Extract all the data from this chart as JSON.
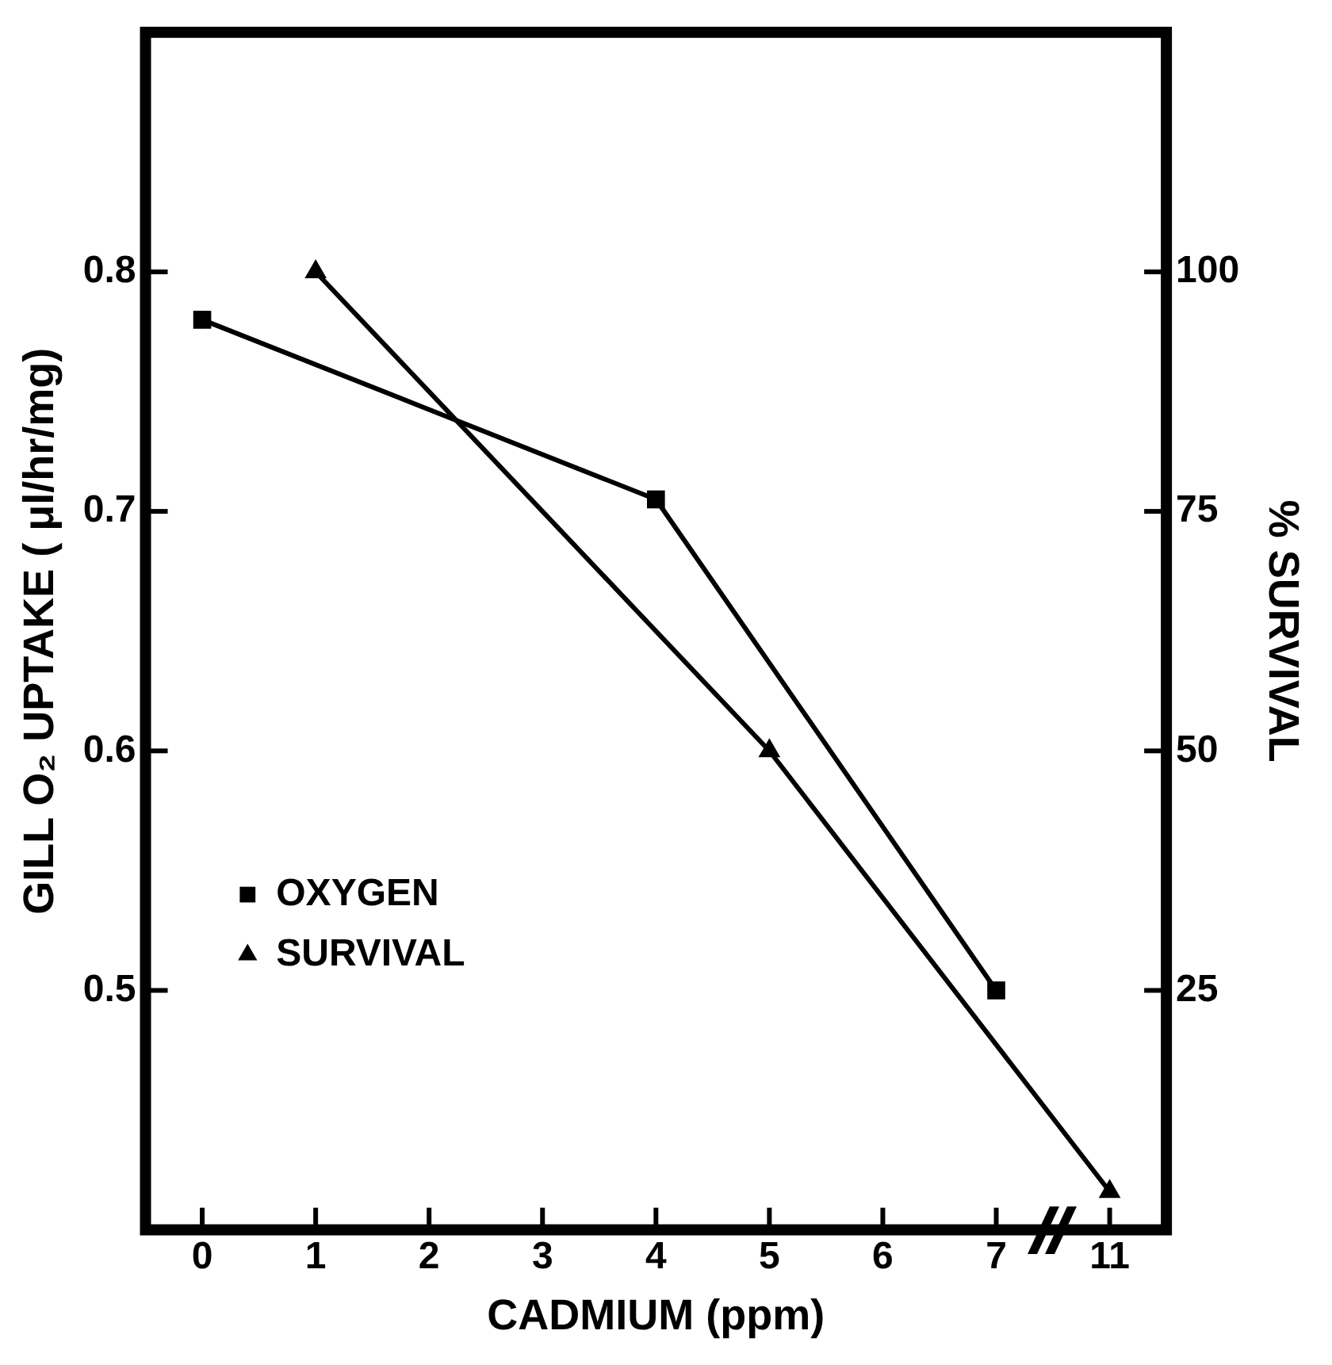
{
  "chart_data": {
    "type": "line",
    "xlabel": "CADMIUM (ppm)",
    "ylabel": "GILL O₂ UPTAKE ( μl/hr/mg)",
    "y2label": "% SURVIVAL",
    "categories": [
      "0",
      "1",
      "2",
      "3",
      "4",
      "5",
      "6",
      "7",
      "11"
    ],
    "series": [
      {
        "name": "OXYGEN",
        "color": "#000000",
        "marker": "square",
        "values": [
          0.78,
          null,
          null,
          null,
          0.705,
          null,
          null,
          0.5,
          null
        ]
      },
      {
        "name": "SURVIVAL",
        "color": "#000000",
        "marker": "triangle",
        "axis": "y2",
        "values": [
          null,
          100,
          null,
          null,
          null,
          50,
          null,
          null,
          4
        ]
      }
    ],
    "ylim": [
      0.4,
      0.9
    ],
    "yticks": [
      0.5,
      0.6,
      0.7,
      0.8
    ],
    "y2lim": [
      0,
      125
    ],
    "y2ticks": [
      25,
      50,
      75,
      100
    ],
    "grid": false,
    "legend": "left",
    "line_style": "solid"
  }
}
